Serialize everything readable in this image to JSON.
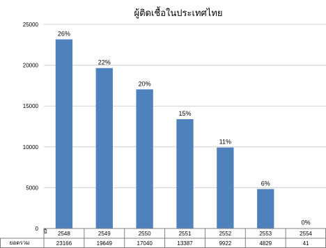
{
  "chart_data": {
    "type": "bar",
    "title": "ผู้ติดเชื้อในประเทศไทย",
    "categories": [
      "2548",
      "2549",
      "2550",
      "2551",
      "2552",
      "2553",
      "2554"
    ],
    "values": [
      23166,
      19649,
      17040,
      13387,
      9922,
      4829,
      41
    ],
    "percent_labels": [
      "26%",
      "22%",
      "20%",
      "15%",
      "11%",
      "6%",
      "0%"
    ],
    "ylim": [
      0,
      25000
    ],
    "yticks": [
      "0",
      "5000",
      "10000",
      "15000",
      "20000",
      "25000"
    ],
    "xlabel": "ปี",
    "table_row_label": "ยอดรวม",
    "table_values": [
      "23166",
      "19649",
      "17040",
      "13387",
      "9922",
      "4829",
      "41"
    ],
    "grid": true,
    "bar_color": "#4F81BD"
  }
}
